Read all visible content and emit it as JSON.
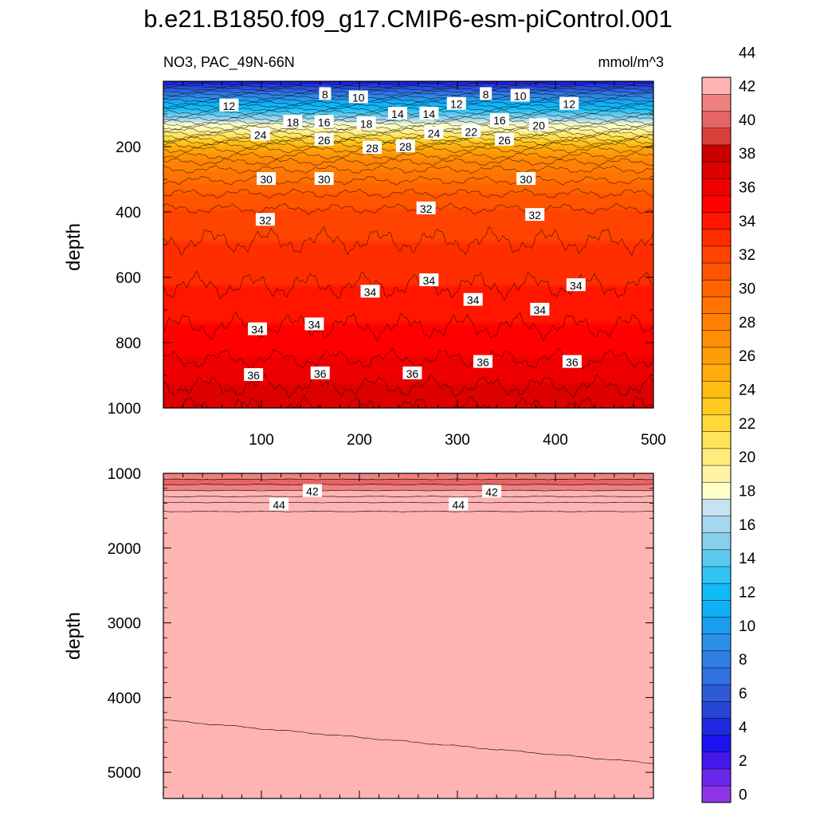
{
  "title": "b.e21.B1850.f09_g17.CMIP6-esm-piControl.001",
  "chart_data": [
    {
      "type": "contour",
      "panel": "upper",
      "left_string": "NO3, PAC_49N-66N",
      "right_string": "mmol/m^3",
      "ylabel": "depth",
      "xlabel": "",
      "xlim": [
        0,
        500
      ],
      "ylim": [
        1000,
        0
      ],
      "xticks": [
        "100",
        "200",
        "300",
        "400",
        "500"
      ],
      "yticks": [
        "200",
        "400",
        "600",
        "800",
        "1000"
      ],
      "yticks_values": [
        200,
        400,
        600,
        800,
        1000
      ],
      "profile_depths": [
        0,
        40,
        80,
        120,
        160,
        200,
        260,
        320,
        400,
        500,
        600,
        700,
        800,
        900,
        1000
      ],
      "profile_values": [
        3,
        8,
        12.5,
        16.5,
        21,
        25.5,
        28.7,
        30.5,
        32.2,
        33.1,
        33.8,
        34.6,
        35.4,
        36.6,
        37.8
      ],
      "contour_labels": [
        {
          "text": "8",
          "x": 165,
          "y": 40
        },
        {
          "text": "10",
          "x": 199,
          "y": 50
        },
        {
          "text": "12",
          "x": 67,
          "y": 75
        },
        {
          "text": "12",
          "x": 299,
          "y": 70
        },
        {
          "text": "8",
          "x": 329,
          "y": 40
        },
        {
          "text": "10",
          "x": 364,
          "y": 45
        },
        {
          "text": "12",
          "x": 414,
          "y": 70
        },
        {
          "text": "14",
          "x": 239,
          "y": 100
        },
        {
          "text": "14",
          "x": 271,
          "y": 100
        },
        {
          "text": "16",
          "x": 164,
          "y": 125
        },
        {
          "text": "18",
          "x": 132,
          "y": 125
        },
        {
          "text": "18",
          "x": 207,
          "y": 130
        },
        {
          "text": "16",
          "x": 343,
          "y": 120
        },
        {
          "text": "20",
          "x": 383,
          "y": 135
        },
        {
          "text": "24",
          "x": 99,
          "y": 165
        },
        {
          "text": "24",
          "x": 276,
          "y": 160
        },
        {
          "text": "22",
          "x": 314,
          "y": 155
        },
        {
          "text": "26",
          "x": 164,
          "y": 180
        },
        {
          "text": "26",
          "x": 348,
          "y": 180
        },
        {
          "text": "28",
          "x": 213,
          "y": 205
        },
        {
          "text": "28",
          "x": 247,
          "y": 200
        },
        {
          "text": "30",
          "x": 105,
          "y": 300
        },
        {
          "text": "30",
          "x": 164,
          "y": 300
        },
        {
          "text": "30",
          "x": 370,
          "y": 300
        },
        {
          "text": "32",
          "x": 104,
          "y": 425
        },
        {
          "text": "32",
          "x": 268,
          "y": 390
        },
        {
          "text": "32",
          "x": 379,
          "y": 410
        },
        {
          "text": "34",
          "x": 211,
          "y": 645
        },
        {
          "text": "34",
          "x": 271,
          "y": 610
        },
        {
          "text": "34",
          "x": 316,
          "y": 670
        },
        {
          "text": "34",
          "x": 384,
          "y": 700
        },
        {
          "text": "34",
          "x": 421,
          "y": 625
        },
        {
          "text": "34",
          "x": 96,
          "y": 760
        },
        {
          "text": "34",
          "x": 154,
          "y": 745
        },
        {
          "text": "36",
          "x": 92,
          "y": 900
        },
        {
          "text": "36",
          "x": 160,
          "y": 895
        },
        {
          "text": "36",
          "x": 254,
          "y": 895
        },
        {
          "text": "36",
          "x": 326,
          "y": 860
        },
        {
          "text": "36",
          "x": 417,
          "y": 860
        }
      ]
    },
    {
      "type": "contour",
      "panel": "lower",
      "ylabel": "depth",
      "xlabel": "",
      "xlim": [
        0,
        500
      ],
      "ylim": [
        5350,
        1000
      ],
      "yticks": [
        "1000",
        "2000",
        "3000",
        "4000",
        "5000"
      ],
      "yticks_values": [
        1000,
        2000,
        3000,
        4000,
        5000
      ],
      "band_edges": [
        1000,
        1080,
        1150,
        1230,
        1310,
        1390,
        1510
      ],
      "band_values": [
        41.5,
        40.5,
        41.5,
        42.5,
        43.5,
        44.5
      ],
      "below_value": 45.5,
      "deep_boundary_depth": [
        [
          0,
          4300
        ],
        [
          500,
          4880
        ]
      ],
      "deep_value": 44.5,
      "contour_labels": [
        {
          "text": "42",
          "x": 152,
          "y": 1240
        },
        {
          "text": "44",
          "x": 118,
          "y": 1420
        },
        {
          "text": "42",
          "x": 335,
          "y": 1250
        },
        {
          "text": "44",
          "x": 301,
          "y": 1420
        }
      ]
    }
  ],
  "colorbar": {
    "labels": [
      "0",
      "2",
      "4",
      "6",
      "8",
      "10",
      "12",
      "14",
      "16",
      "18",
      "20",
      "22",
      "24",
      "26",
      "28",
      "30",
      "32",
      "34",
      "36",
      "38",
      "40",
      "42",
      "44"
    ],
    "colors": [
      "#8e36e6",
      "#6a27e8",
      "#4418ea",
      "#1b14f0",
      "#1f2ae0",
      "#2746d6",
      "#2e5ad8",
      "#3070df",
      "#2f7ee4",
      "#2d8ee8",
      "#1a9cf0",
      "#0fb0f6",
      "#10bbf6",
      "#2fc4f3",
      "#5ccaef",
      "#87d0ec",
      "#a5d7ee",
      "#c7e3f1",
      "#ffffc8",
      "#fff3a5",
      "#ffec7a",
      "#ffe45a",
      "#ffd93a",
      "#ffcb20",
      "#ffbc12",
      "#ffac0c",
      "#ff9d08",
      "#ff8e05",
      "#ff8003",
      "#ff7302",
      "#ff6401",
      "#ff5400",
      "#ff4300",
      "#ff2e00",
      "#ff1500",
      "#ff0000",
      "#ee0000",
      "#dc0000",
      "#c80000",
      "#d8403c",
      "#e66464",
      "#f08080",
      "#ffb4b4"
    ]
  }
}
